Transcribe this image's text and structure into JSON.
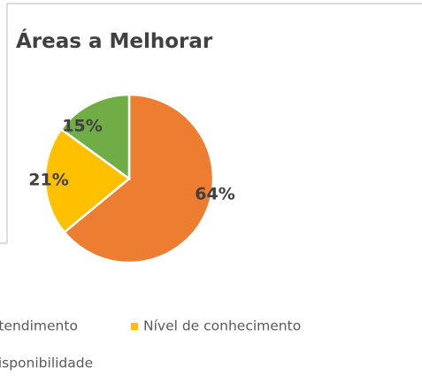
{
  "chart_data": {
    "type": "pie",
    "title": "Áreas a Melhorar",
    "categories": [
      "Atendimento",
      "Nível de conhecimento",
      "disponibilidade"
    ],
    "values": [
      64,
      21,
      15
    ],
    "value_labels": [
      "64%",
      "21%",
      "15%"
    ],
    "colors": [
      "#ed7d31",
      "#ffc000",
      "#70ad47"
    ]
  }
}
